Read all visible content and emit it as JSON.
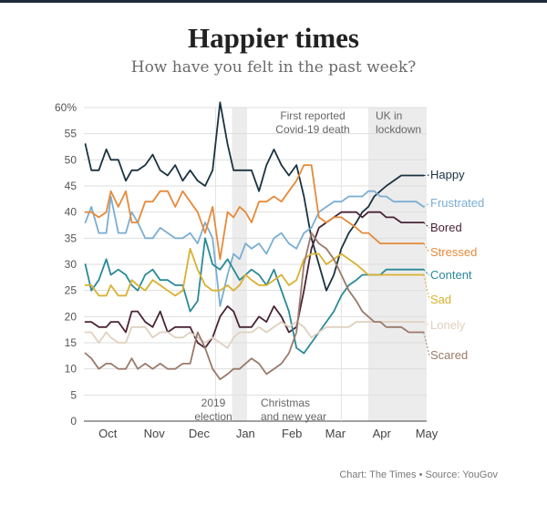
{
  "title": "Happier times",
  "subtitle": "How have you felt in the past week?",
  "source": "Chart: The Times • Source: YouGov",
  "chart_data": {
    "type": "line",
    "title": "Happier times",
    "subtitle": "How have you felt in the past week?",
    "x_start": "2019-09-15",
    "x_end": "2020-05-01",
    "ylim": [
      0,
      60
    ],
    "y_ticks": [
      0,
      5,
      10,
      15,
      20,
      25,
      30,
      35,
      40,
      45,
      50,
      55,
      60
    ],
    "y_tick_labels": [
      "0",
      "5",
      "10",
      "15",
      "20",
      "25",
      "30",
      "35",
      "40",
      "45",
      "50",
      "55",
      "60%"
    ],
    "x_ticks": [
      {
        "label": "Oct",
        "date": "2019-10-01"
      },
      {
        "label": "Nov",
        "date": "2019-11-01"
      },
      {
        "label": "Dec",
        "date": "2019-12-01"
      },
      {
        "label": "Jan",
        "date": "2020-01-01"
      },
      {
        "label": "Feb",
        "date": "2020-02-01"
      },
      {
        "label": "Mar",
        "date": "2020-03-01"
      },
      {
        "label": "Apr",
        "date": "2020-04-01"
      },
      {
        "label": "May",
        "date": "2020-05-01"
      }
    ],
    "grid": true,
    "legend": "right",
    "dates": [
      "2019-09-16",
      "2019-09-20",
      "2019-09-25",
      "2019-09-30",
      "2019-10-03",
      "2019-10-08",
      "2019-10-13",
      "2019-10-17",
      "2019-10-21",
      "2019-10-26",
      "2019-10-31",
      "2019-11-05",
      "2019-11-10",
      "2019-11-15",
      "2019-11-20",
      "2019-11-25",
      "2019-11-30",
      "2019-12-05",
      "2019-12-10",
      "2019-12-15",
      "2019-12-20",
      "2019-12-24",
      "2019-12-28",
      "2020-01-01",
      "2020-01-05",
      "2020-01-10",
      "2020-01-15",
      "2020-01-20",
      "2020-01-25",
      "2020-01-30",
      "2020-02-04",
      "2020-02-09",
      "2020-02-14",
      "2020-02-19",
      "2020-02-24",
      "2020-02-29",
      "2020-03-05",
      "2020-03-10",
      "2020-03-15",
      "2020-03-19",
      "2020-03-23",
      "2020-03-27",
      "2020-03-31",
      "2020-04-04",
      "2020-04-09",
      "2020-04-14",
      "2020-04-19",
      "2020-04-24",
      "2020-04-29"
    ],
    "series": [
      {
        "name": "Happy",
        "color": "#1b3340",
        "values": [
          53,
          48,
          48,
          52,
          50,
          50,
          46,
          48,
          48,
          49,
          51,
          48,
          47,
          49,
          46,
          48,
          46,
          45,
          48,
          61,
          53,
          48,
          48,
          48,
          48,
          44,
          49,
          52,
          49,
          47,
          49,
          43,
          35,
          30,
          25,
          28,
          33,
          36,
          38,
          40,
          41,
          43,
          44,
          45,
          46,
          47,
          47,
          47,
          47
        ]
      },
      {
        "name": "Frustrated",
        "color": "#7aaed4",
        "values": [
          38,
          41,
          36,
          36,
          43,
          36,
          36,
          40,
          38,
          35,
          35,
          37,
          36,
          35,
          35,
          36,
          34,
          38,
          35,
          22,
          28,
          32,
          31,
          34,
          33,
          34,
          32,
          35,
          36,
          34,
          33,
          36,
          37,
          40,
          41,
          42,
          42,
          43,
          43,
          43,
          44,
          44,
          43,
          43,
          42,
          42,
          42,
          42,
          41
        ]
      },
      {
        "name": "Bored",
        "color": "#4a2436",
        "values": [
          19,
          19,
          18,
          18,
          19,
          19,
          17,
          21,
          21,
          19,
          18,
          21,
          17,
          18,
          18,
          18,
          15,
          14,
          16,
          20,
          22,
          21,
          18,
          18,
          18,
          20,
          19,
          22,
          20,
          17,
          18,
          25,
          33,
          37,
          38,
          39,
          40,
          40,
          40,
          39,
          40,
          40,
          40,
          39,
          39,
          38,
          38,
          38,
          38
        ]
      },
      {
        "name": "Stressed",
        "color": "#e58a3a",
        "values": [
          40,
          40,
          39,
          40,
          44,
          41,
          44,
          38,
          38,
          42,
          42,
          44,
          44,
          41,
          44,
          42,
          40,
          36,
          41,
          31,
          40,
          39,
          41,
          40,
          38,
          42,
          42,
          43,
          42,
          44,
          46,
          49,
          49,
          39,
          38,
          39,
          39,
          38,
          37,
          36,
          36,
          35,
          34,
          34,
          34,
          34,
          34,
          34,
          34
        ]
      },
      {
        "name": "Content",
        "color": "#2a8a98",
        "values": [
          30,
          25,
          27,
          31,
          28,
          29,
          28,
          26,
          25,
          28,
          29,
          27,
          27,
          26,
          26,
          21,
          23,
          35,
          30,
          29,
          31,
          29,
          27,
          28,
          29,
          28,
          26,
          29,
          25,
          21,
          14,
          13,
          15,
          17,
          19,
          21,
          24,
          26,
          27,
          28,
          28,
          28,
          28,
          29,
          29,
          29,
          29,
          29,
          29
        ]
      },
      {
        "name": "Sad",
        "color": "#d9b030",
        "values": [
          26,
          26,
          24,
          24,
          26,
          24,
          24,
          27,
          26,
          25,
          27,
          26,
          25,
          24,
          25,
          33,
          29,
          26,
          25,
          25,
          26,
          25,
          26,
          28,
          27,
          26,
          26,
          27,
          28,
          26,
          27,
          31,
          32,
          32,
          30,
          31,
          32,
          31,
          30,
          29,
          28,
          28,
          28,
          28,
          28,
          28,
          28,
          28,
          28
        ]
      },
      {
        "name": "Lonely",
        "color": "#e0d0c0",
        "values": [
          17,
          17,
          15,
          17,
          16,
          15,
          15,
          18,
          18,
          18,
          16,
          17,
          17,
          16,
          16,
          17,
          16,
          15,
          16,
          15,
          14,
          16,
          17,
          17,
          17,
          18,
          17,
          18,
          19,
          18,
          19,
          18,
          16,
          17,
          18,
          18,
          18,
          18,
          19,
          19,
          19,
          19,
          19,
          19,
          19,
          19,
          19,
          19,
          19
        ]
      },
      {
        "name": "Scared",
        "color": "#9a7a6a",
        "values": [
          13,
          12,
          10,
          11,
          11,
          10,
          10,
          12,
          10,
          11,
          10,
          11,
          10,
          10,
          11,
          11,
          17,
          14,
          10,
          8,
          9,
          10,
          10,
          11,
          12,
          11,
          9,
          10,
          11,
          13,
          17,
          30,
          36,
          34,
          33,
          31,
          28,
          25,
          23,
          21,
          20,
          19,
          19,
          18,
          18,
          18,
          17,
          17,
          17
        ]
      }
    ],
    "annotations": [
      {
        "label": "2019\nelection",
        "date": "2019-12-12",
        "style": "line"
      },
      {
        "label": "Christmas\nand new year",
        "start": "2019-12-23",
        "end": "2020-01-02",
        "style": "band"
      },
      {
        "label": "First reported\nCovid-19 death",
        "date": "2020-03-05",
        "style": "line"
      },
      {
        "label": "UK in\nlockdown",
        "start": "2020-03-23",
        "end": "2020-05-01",
        "style": "band"
      }
    ]
  }
}
